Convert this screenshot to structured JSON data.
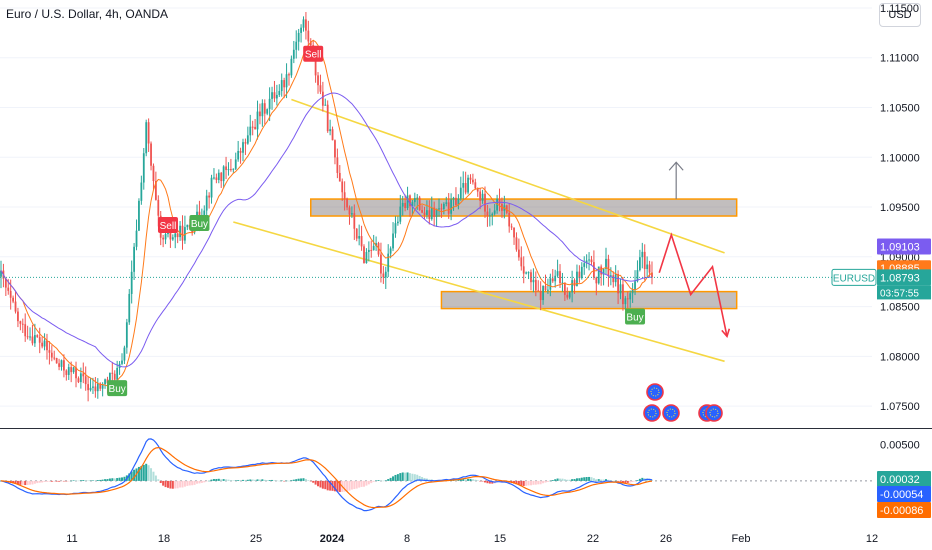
{
  "header": {
    "title": "Euro / U.S. Dollar, 4h, OANDA",
    "currency_button": "USD"
  },
  "price_axis": {
    "ticks": [
      "1.11500",
      "1.11000",
      "1.10500",
      "1.10000",
      "1.09500",
      "1.09000",
      "1.08500",
      "1.08000",
      "1.07500"
    ],
    "tick_values": [
      1.115,
      1.11,
      1.105,
      1.1,
      1.095,
      1.09,
      1.085,
      1.08,
      1.075
    ],
    "range": [
      1.0728,
      1.1158
    ]
  },
  "price_labels": {
    "high_line": {
      "value": 1.09103,
      "text": "1.09103",
      "color": "#7b5cf0"
    },
    "ma_line": {
      "value": 1.08885,
      "text": "1.08885",
      "color": "#ff7a1a"
    },
    "last": {
      "value": 1.08793,
      "text": "1.08793",
      "countdown": "03:57:55",
      "symbol": "EURUSD",
      "color": "#26a69a"
    }
  },
  "macd_axis": {
    "ticks": [
      "0.00500"
    ],
    "range": [
      -0.0062,
      0.007
    ]
  },
  "macd_labels": [
    {
      "value": 0.00032,
      "text": "0.00032",
      "color": "#26a69a"
    },
    {
      "value": -0.00054,
      "text": "-0.00054",
      "color": "#2962ff"
    },
    {
      "value": -0.00086,
      "text": "-0.00086",
      "color": "#ff6d00"
    }
  ],
  "time_axis": [
    "11",
    "18",
    "25",
    "2024",
    "8",
    "15",
    "22",
    "26",
    "Feb",
    "12"
  ],
  "signals": [
    {
      "text": "Sell",
      "kind": "sell",
      "bar": 129,
      "price": 1.1104
    },
    {
      "text": "Sell",
      "kind": "sell",
      "bar": 69,
      "price": 1.0932
    },
    {
      "text": "Buy",
      "kind": "buy",
      "bar": 82,
      "price": 1.0934
    },
    {
      "text": "Buy",
      "kind": "buy",
      "bar": 48,
      "price": 1.0768
    },
    {
      "text": "Buy",
      "kind": "buy",
      "bar": 262,
      "price": 1.084
    }
  ],
  "chart_data": {
    "type": "candlestick",
    "title": "Euro / U.S. Dollar, 4h, OANDA",
    "symbol": "EURUSD",
    "ylim": [
      1.0728,
      1.1158
    ],
    "indicators": [
      "moving average (orange)",
      "moving average (purple)",
      "MACD"
    ],
    "zones": [
      {
        "top": 1.0953,
        "bottom": 1.0946
      },
      {
        "top": 1.086,
        "bottom": 1.0853
      }
    ],
    "channel": {
      "upper": [
        [
          120,
          1.1058
        ],
        [
          299,
          1.0904
        ]
      ],
      "lower": [
        [
          96,
          1.0935
        ],
        [
          299,
          1.0795
        ]
      ]
    },
    "projection": [
      [
        272,
        1.0884
      ],
      [
        277,
        1.0922
      ],
      [
        285,
        1.0862
      ],
      [
        294,
        1.089
      ],
      [
        300,
        1.082
      ]
    ],
    "up_arrow": {
      "bar": 279,
      "from": 1.0953,
      "to": 1.0995
    },
    "candles": []
  }
}
